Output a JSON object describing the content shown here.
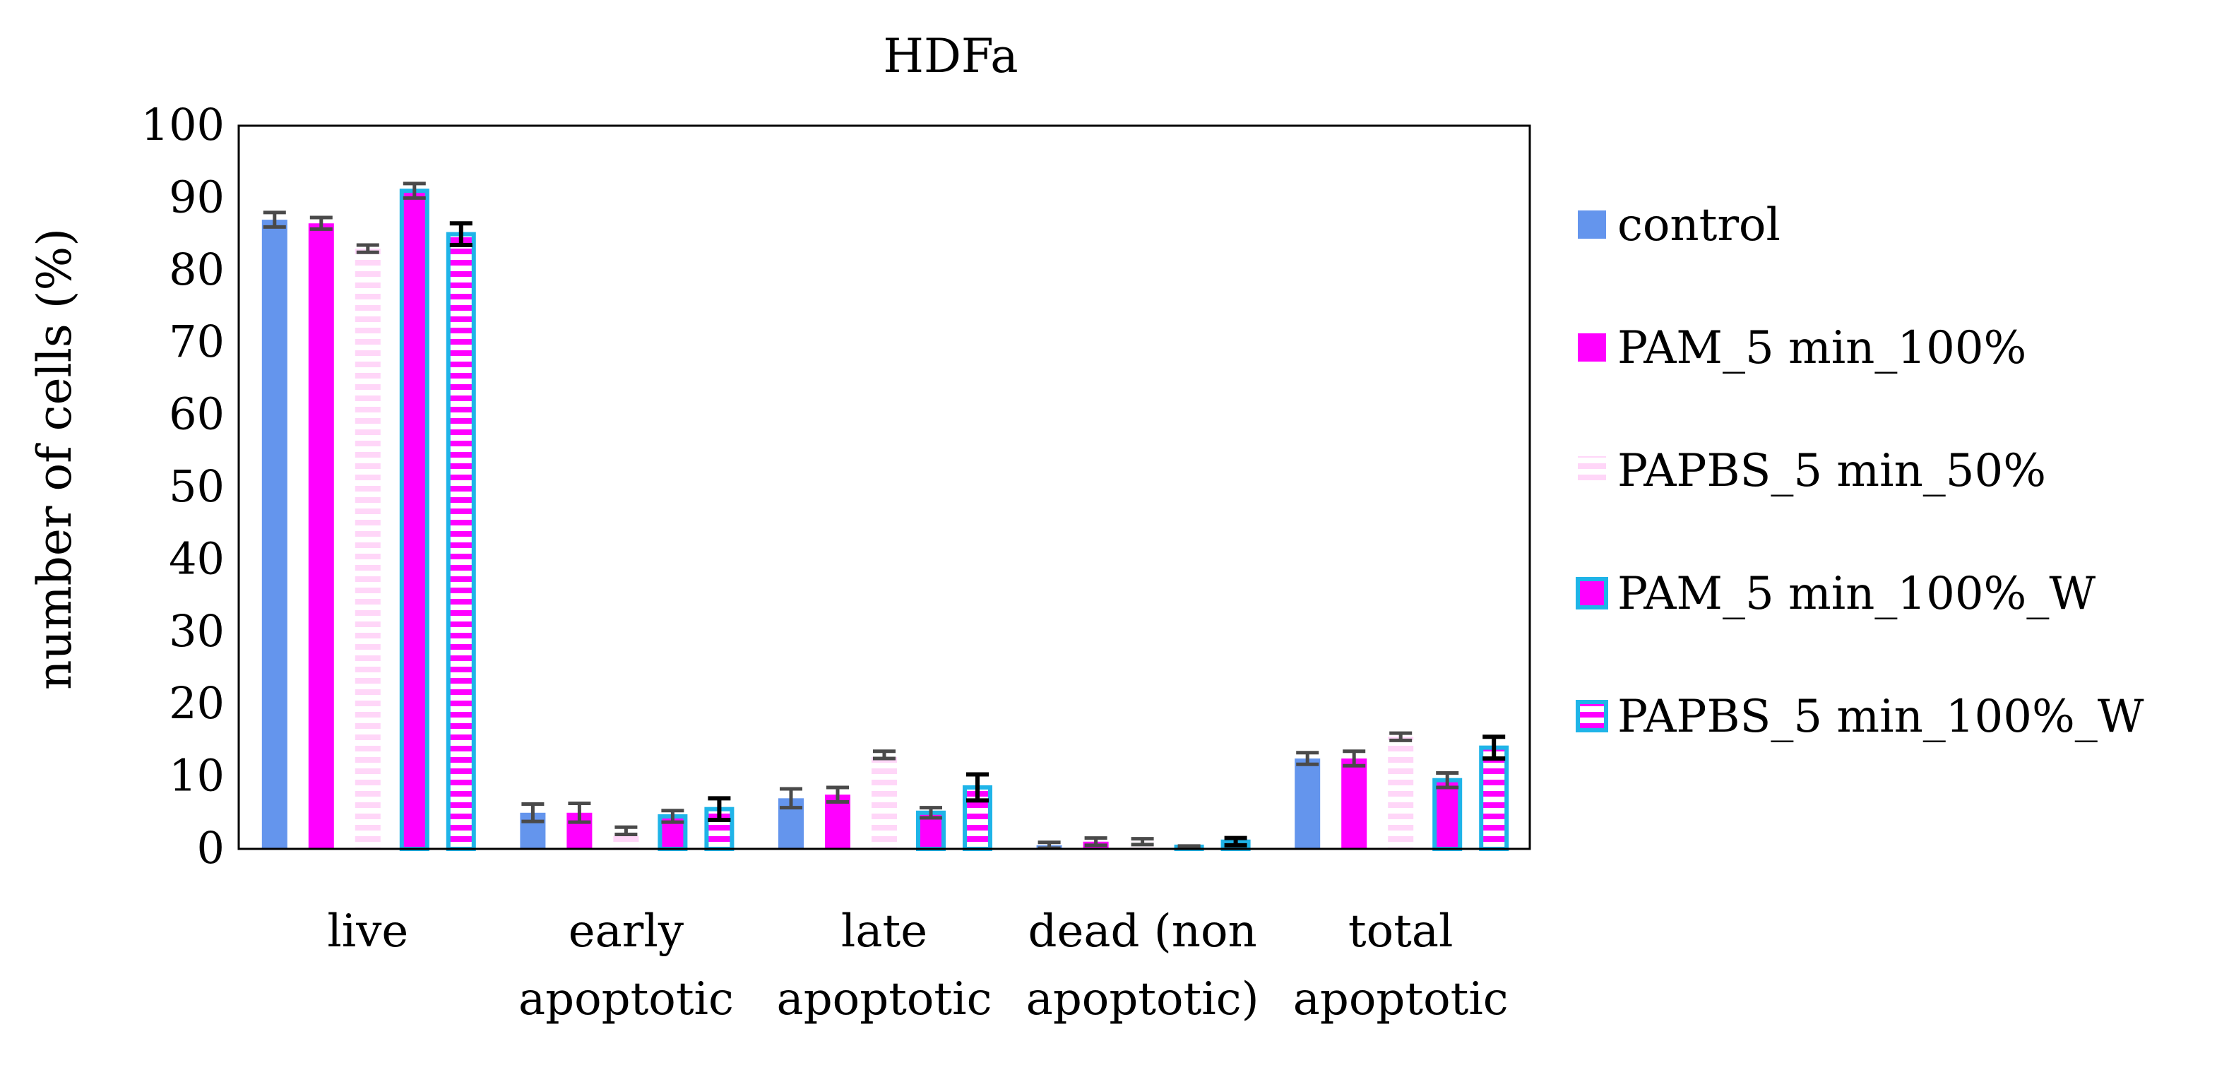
{
  "chart_data": {
    "type": "bar",
    "title": "HDFa",
    "xlabel": "",
    "ylabel": "number of cells (%)",
    "ylim": [
      0,
      100
    ],
    "yticks": [
      0,
      10,
      20,
      30,
      40,
      50,
      60,
      70,
      80,
      90,
      100
    ],
    "grid": false,
    "legend_position": "right",
    "categories": [
      [
        "live"
      ],
      [
        "early",
        "apoptotic"
      ],
      [
        "late",
        "apoptotic"
      ],
      [
        "dead (non",
        "apoptotic)"
      ],
      [
        "total",
        "apoptotic"
      ]
    ],
    "series": [
      {
        "name": "control",
        "style": "solid",
        "fill": "#6495ED",
        "stroke": "none",
        "values": [
          87,
          5,
          7,
          0.5,
          12.5
        ],
        "errors": [
          1,
          1.2,
          1.3,
          0.4,
          0.8
        ]
      },
      {
        "name": "PAM_5 min_100%",
        "style": "solid",
        "fill": "#FF00FF",
        "stroke": "none",
        "values": [
          86.5,
          5,
          7.5,
          1,
          12.5
        ],
        "errors": [
          0.8,
          1.3,
          1.0,
          0.5,
          1.0
        ]
      },
      {
        "name": "PAPBS_5 min_50%",
        "style": "striped",
        "fill": "#FFD6F8",
        "stroke": "none",
        "values": [
          83,
          2.5,
          13,
          1,
          15.5
        ],
        "errors": [
          0.5,
          0.5,
          0.5,
          0.4,
          0.5
        ]
      },
      {
        "name": "PAM_5 min_100%_W",
        "style": "outlined",
        "fill": "#FF00FF",
        "stroke": "#1FB4E8",
        "values": [
          91,
          4.5,
          5,
          0.3,
          9.5
        ],
        "errors": [
          1.0,
          0.8,
          0.7,
          0.1,
          1.0
        ]
      },
      {
        "name": "PAPBS_5 min_100%_W",
        "style": "outlined-striped",
        "fill": "#FF00FF",
        "stroke": "#1FB4E8",
        "values": [
          85,
          5.5,
          8.5,
          1,
          14
        ],
        "errors": [
          1.5,
          1.5,
          1.8,
          0.5,
          1.5
        ]
      }
    ]
  }
}
